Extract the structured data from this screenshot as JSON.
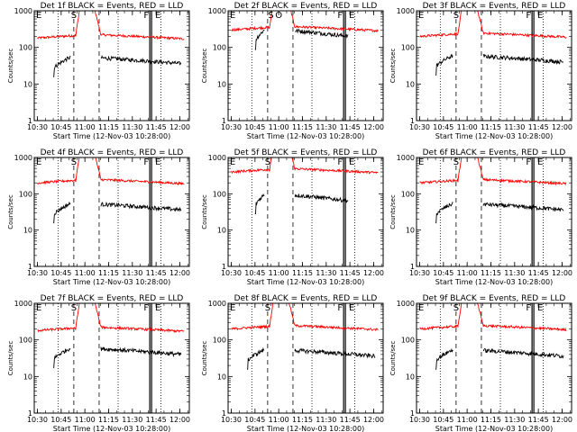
{
  "chart_data": [
    {
      "type": "line",
      "title": "Det 1f BLACK = Events, RED = LLD",
      "xlabel": "Start Time (12-Nov-03 10:28:00)",
      "ylabel": "Counts/sec",
      "y_scale": "log",
      "ylim": [
        1,
        1000
      ],
      "x_ticks": [
        "10:30",
        "10:45",
        "11:00",
        "11:15",
        "11:30",
        "11:45",
        "12:00"
      ],
      "y_ticks": [
        "1",
        "10",
        "100",
        "1000"
      ],
      "markers": [
        {
          "label": "S",
          "time": "10:53"
        },
        {
          "label": "F",
          "time": "11:41"
        },
        {
          "label": "E",
          "time": "11:45"
        }
      ],
      "series": [
        {
          "name": "LLD",
          "color": "#ff0000",
          "start": "10:30",
          "end": "12:03",
          "base": 180,
          "high": 1000
        },
        {
          "name": "Events",
          "color": "#000000",
          "start": "10:40",
          "end": "12:01",
          "base": 45
        }
      ]
    },
    {
      "type": "line",
      "title": "Det 2f BLACK = Events, RED = LLD",
      "xlabel": "Start Time (12-Nov-03 10:28:00)",
      "ylabel": "Counts/sec",
      "y_scale": "log",
      "ylim": [
        1,
        1000
      ],
      "x_ticks": [
        "10:30",
        "10:45",
        "11:00",
        "11:15",
        "11:30",
        "11:45",
        "12:00"
      ],
      "y_ticks": [
        "1",
        "10",
        "100",
        "1000"
      ],
      "markers": [
        {
          "label": "S",
          "time": "10:55"
        },
        {
          "label": "O",
          "time": "11:00"
        },
        {
          "label": "F",
          "time": "11:39"
        },
        {
          "label": "E",
          "time": "11:45"
        }
      ],
      "series": [
        {
          "name": "LLD",
          "color": "#ff0000",
          "start": "10:30",
          "end": "12:03",
          "base": 300,
          "high": 1000
        },
        {
          "name": "Events",
          "color": "#000000",
          "start": "10:45",
          "end": "11:44",
          "base": 250
        }
      ]
    },
    {
      "type": "line",
      "title": "Det 3f BLACK = Events, RED = LLD",
      "xlabel": "Start Time (12-Nov-03 10:28:00)",
      "ylabel": "Counts/sec",
      "y_scale": "log",
      "ylim": [
        1,
        1000
      ],
      "x_ticks": [
        "10:30",
        "10:45",
        "11:00",
        "11:15",
        "11:30",
        "11:45",
        "12:00"
      ],
      "y_ticks": [
        "1",
        "10",
        "100",
        "1000"
      ],
      "markers": [
        {
          "label": "S",
          "time": "10:53"
        },
        {
          "label": "F",
          "time": "11:41"
        },
        {
          "label": "E",
          "time": "11:45"
        }
      ],
      "series": [
        {
          "name": "LLD",
          "color": "#ff0000",
          "start": "10:30",
          "end": "12:03",
          "base": 200,
          "high": 1000
        },
        {
          "name": "Events",
          "color": "#000000",
          "start": "10:40",
          "end": "12:01",
          "base": 50
        }
      ]
    },
    {
      "type": "line",
      "title": "Det 4f BLACK = Events, RED = LLD",
      "xlabel": "Start Time (12-Nov-03 10:28:00)",
      "ylabel": "Counts/sec",
      "y_scale": "log",
      "ylim": [
        1,
        1000
      ],
      "x_ticks": [
        "10:30",
        "10:45",
        "11:00",
        "11:15",
        "11:30",
        "11:45",
        "12:00"
      ],
      "y_ticks": [
        "1",
        "10",
        "100",
        "1000"
      ],
      "markers": [
        {
          "label": "S",
          "time": "10:53"
        },
        {
          "label": "F",
          "time": "11:41"
        },
        {
          "label": "E",
          "time": "11:45"
        }
      ],
      "series": [
        {
          "name": "LLD",
          "color": "#ff0000",
          "start": "10:30",
          "end": "12:03",
          "base": 200,
          "high": 1000
        },
        {
          "name": "Events",
          "color": "#000000",
          "start": "10:40",
          "end": "12:01",
          "base": 45
        }
      ]
    },
    {
      "type": "line",
      "title": "Det 5f BLACK = Events, RED = LLD",
      "xlabel": "Start Time (12-Nov-03 10:28:00)",
      "ylabel": "Counts/sec",
      "y_scale": "log",
      "ylim": [
        1,
        1000
      ],
      "x_ticks": [
        "10:30",
        "10:45",
        "11:00",
        "11:15",
        "11:30",
        "11:45",
        "12:00"
      ],
      "y_ticks": [
        "1",
        "10",
        "100",
        "1000"
      ],
      "markers": [
        {
          "label": "S",
          "time": "10:53"
        },
        {
          "label": "F",
          "time": "11:41"
        },
        {
          "label": "E",
          "time": "11:45"
        }
      ],
      "series": [
        {
          "name": "LLD",
          "color": "#ff0000",
          "start": "10:30",
          "end": "12:03",
          "base": 400,
          "high": 1000
        },
        {
          "name": "Events",
          "color": "#000000",
          "start": "10:45",
          "end": "11:44",
          "base": 80
        }
      ]
    },
    {
      "type": "line",
      "title": "Det 6f BLACK = Events, RED = LLD",
      "xlabel": "Start Time (12-Nov-03 10:28:00)",
      "ylabel": "Counts/sec",
      "y_scale": "log",
      "ylim": [
        1,
        1000
      ],
      "x_ticks": [
        "10:30",
        "10:45",
        "11:00",
        "11:15",
        "11:30",
        "11:45",
        "12:00"
      ],
      "y_ticks": [
        "1",
        "10",
        "100",
        "1000"
      ],
      "markers": [
        {
          "label": "S",
          "time": "10:53"
        },
        {
          "label": "F",
          "time": "11:41"
        },
        {
          "label": "E",
          "time": "11:45"
        }
      ],
      "series": [
        {
          "name": "LLD",
          "color": "#ff0000",
          "start": "10:30",
          "end": "12:03",
          "base": 200,
          "high": 1000
        },
        {
          "name": "Events",
          "color": "#000000",
          "start": "10:40",
          "end": "12:01",
          "base": 45
        }
      ]
    },
    {
      "type": "line",
      "title": "Det 7f BLACK = Events, RED = LLD",
      "xlabel": "Start Time (12-Nov-03 10:28:00)",
      "ylabel": "Counts/sec",
      "y_scale": "log",
      "ylim": [
        1,
        1000
      ],
      "x_ticks": [
        "10:30",
        "10:45",
        "11:00",
        "11:15",
        "11:30",
        "11:45",
        "12:00"
      ],
      "y_ticks": [
        "1",
        "10",
        "100",
        "1000"
      ],
      "markers": [
        {
          "label": "S",
          "time": "10:53"
        },
        {
          "label": "F",
          "time": "11:41"
        },
        {
          "label": "E",
          "time": "11:45"
        }
      ],
      "series": [
        {
          "name": "LLD",
          "color": "#ff0000",
          "start": "10:30",
          "end": "12:03",
          "base": 180,
          "high": 1000
        },
        {
          "name": "Events",
          "color": "#000000",
          "start": "10:40",
          "end": "12:01",
          "base": 50
        }
      ]
    },
    {
      "type": "line",
      "title": "Det 8f BLACK = Events, RED = LLD",
      "xlabel": "Start Time (12-Nov-03 10:28:00)",
      "ylabel": "Counts/sec",
      "y_scale": "log",
      "ylim": [
        1,
        1000
      ],
      "x_ticks": [
        "10:30",
        "10:45",
        "11:00",
        "11:15",
        "11:30",
        "11:45",
        "12:00"
      ],
      "y_ticks": [
        "1",
        "10",
        "100",
        "1000"
      ],
      "markers": [
        {
          "label": "S",
          "time": "10:53"
        },
        {
          "label": "F",
          "time": "11:41"
        },
        {
          "label": "E",
          "time": "11:45"
        }
      ],
      "series": [
        {
          "name": "LLD",
          "color": "#ff0000",
          "start": "10:30",
          "end": "12:03",
          "base": 200,
          "high": 1000
        },
        {
          "name": "Events",
          "color": "#000000",
          "start": "10:40",
          "end": "12:01",
          "base": 45
        }
      ]
    },
    {
      "type": "line",
      "title": "Det 9f BLACK = Events, RED = LLD",
      "xlabel": "Start Time (12-Nov-03 10:28:00)",
      "ylabel": "Counts/sec",
      "y_scale": "log",
      "ylim": [
        1,
        1000
      ],
      "x_ticks": [
        "10:30",
        "10:45",
        "11:00",
        "11:15",
        "11:30",
        "11:45",
        "12:00"
      ],
      "y_ticks": [
        "1",
        "10",
        "100",
        "1000"
      ],
      "markers": [
        {
          "label": "S",
          "time": "10:53"
        },
        {
          "label": "F",
          "time": "11:41"
        },
        {
          "label": "E",
          "time": "11:45"
        }
      ],
      "series": [
        {
          "name": "LLD",
          "color": "#ff0000",
          "start": "10:30",
          "end": "12:03",
          "base": 200,
          "high": 1000
        },
        {
          "name": "Events",
          "color": "#000000",
          "start": "10:40",
          "end": "12:01",
          "base": 45
        }
      ]
    }
  ]
}
